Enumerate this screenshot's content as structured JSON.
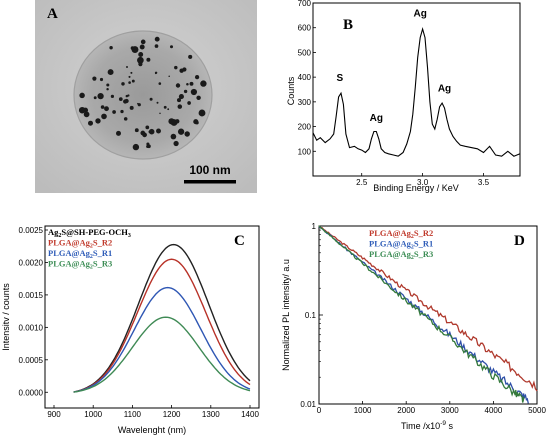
{
  "panelA": {
    "letter": "A",
    "scalebar_label": "100 nm"
  },
  "chart_data": [
    {
      "panel": "B",
      "type": "line",
      "xlabel": "Binding Energy / KeV",
      "ylabel": "Counts",
      "xlim": [
        2.1,
        3.8
      ],
      "ylim": [
        0,
        700
      ],
      "xticks": [
        2.5,
        3.0,
        3.5
      ],
      "yticks": [
        100,
        200,
        300,
        400,
        500,
        600,
        700
      ],
      "peak_labels": [
        {
          "text": "S",
          "x": 2.32,
          "y": 385
        },
        {
          "text": "Ag",
          "x": 2.62,
          "y": 222
        },
        {
          "text": "Ag",
          "x": 2.98,
          "y": 645
        },
        {
          "text": "Ag",
          "x": 3.18,
          "y": 342
        }
      ],
      "series": [
        {
          "x": [
            2.1,
            2.13,
            2.16,
            2.2,
            2.24,
            2.27,
            2.29,
            2.31,
            2.33,
            2.35,
            2.37,
            2.4,
            2.44,
            2.47,
            2.5,
            2.53,
            2.56,
            2.58,
            2.6,
            2.62,
            2.64,
            2.66,
            2.69,
            2.72,
            2.76,
            2.8,
            2.84,
            2.87,
            2.9,
            2.92,
            2.94,
            2.96,
            2.98,
            3.0,
            3.02,
            3.04,
            3.06,
            3.08,
            3.1,
            3.12,
            3.14,
            3.16,
            3.18,
            3.2,
            3.22,
            3.25,
            3.28,
            3.31,
            3.35,
            3.4,
            3.45,
            3.5,
            3.55,
            3.6,
            3.65,
            3.7,
            3.75,
            3.8
          ],
          "y": [
            175,
            145,
            155,
            135,
            150,
            170,
            240,
            320,
            335,
            290,
            170,
            115,
            120,
            110,
            105,
            95,
            110,
            150,
            180,
            180,
            150,
            110,
            95,
            90,
            85,
            80,
            95,
            130,
            180,
            250,
            360,
            480,
            560,
            595,
            560,
            440,
            300,
            210,
            190,
            230,
            280,
            295,
            275,
            230,
            190,
            160,
            140,
            125,
            120,
            115,
            110,
            95,
            120,
            85,
            80,
            100,
            80,
            90
          ]
        }
      ]
    },
    {
      "panel": "C",
      "type": "line",
      "xlabel": "Wavelenght (nm)",
      "ylabel": "Intensitv / counts",
      "xlim": [
        900,
        1400
      ],
      "ylim": [
        -0.00015,
        0.0025
      ],
      "xticks": [
        900,
        1000,
        1100,
        1200,
        1300,
        1400
      ],
      "yticks": [
        0.0,
        0.0005,
        0.001,
        0.0015,
        0.002,
        0.0025
      ],
      "ytick_labels": [
        "0.0000",
        "0.0005",
        "0.0010",
        "0.0015",
        "0.0020",
        "0.0025"
      ],
      "series": [
        {
          "name": "Ag2S@SH-PEG-OCH3",
          "color": "#222222",
          "peak_x": 1205,
          "peak_y": 0.00231,
          "fwhm": 210
        },
        {
          "name": "PLGA@Ag2S_R2",
          "color": "#b83228",
          "peak_x": 1200,
          "peak_y": 0.00208,
          "fwhm": 205
        },
        {
          "name": "PLGA@Ag2S_R1",
          "color": "#2f57b4",
          "peak_x": 1190,
          "peak_y": 0.00164,
          "fwhm": 200
        },
        {
          "name": "PLGA@Ag2S_R3",
          "color": "#3f8a55",
          "peak_x": 1185,
          "peak_y": 0.00118,
          "fwhm": 200
        }
      ],
      "legend": {
        "placement": "top-left",
        "entries": [
          {
            "main": "Ag",
            "sub": "2",
            "rest": "S@SH-PEG-OCH",
            "sub2": "3",
            "color": "#000000"
          },
          {
            "main": "PLGA@Ag",
            "sub": "2",
            "rest": "S_R2",
            "sub2": "",
            "color": "#c0392b"
          },
          {
            "main": "PLGA@Ag",
            "sub": "2",
            "rest": "S_R1",
            "sub2": "",
            "color": "#2e5cb8"
          },
          {
            "main": "PLGA@Ag",
            "sub": "2",
            "rest": "S_R3",
            "sub2": "",
            "color": "#3c8d55"
          }
        ]
      }
    },
    {
      "panel": "D",
      "type": "line",
      "log_y": true,
      "xlabel_main": "Time /x10",
      "xlabel_exp": "-9",
      "xlabel_unit": " s",
      "ylabel": "Normalized PL intensity/ a.u",
      "xlim": [
        0,
        5000
      ],
      "ylim": [
        0.01,
        1
      ],
      "xticks": [
        0,
        1000,
        2000,
        3000,
        4000,
        5000
      ],
      "yticks": [
        0.01,
        0.1,
        1
      ],
      "ytick_labels": [
        "0.01",
        "0.1",
        "1"
      ],
      "series": [
        {
          "name": "PLGA@Ag2S_R2",
          "color": "#b03a2e",
          "x": [
            0,
            500,
            1000,
            1500,
            2000,
            2500,
            3000,
            3500,
            4000,
            4500,
            5000
          ],
          "y": [
            1.0,
            0.66,
            0.44,
            0.29,
            0.19,
            0.125,
            0.083,
            0.055,
            0.036,
            0.024,
            0.016
          ]
        },
        {
          "name": "PLGA@Ag2S_R1",
          "color": "#2e4fa8",
          "x": [
            0,
            500,
            1000,
            1500,
            2000,
            2500,
            3000,
            3500,
            4000,
            4500,
            4800
          ],
          "y": [
            1.0,
            0.62,
            0.39,
            0.245,
            0.153,
            0.096,
            0.06,
            0.037,
            0.023,
            0.0145,
            0.0112
          ]
        },
        {
          "name": "PLGA@Ag2S_R3",
          "color": "#357a3c",
          "x": [
            0,
            500,
            1000,
            1500,
            2000,
            2500,
            3000,
            3500,
            4000,
            4500,
            4700
          ],
          "y": [
            1.0,
            0.615,
            0.38,
            0.235,
            0.145,
            0.09,
            0.056,
            0.034,
            0.021,
            0.0132,
            0.011
          ]
        }
      ],
      "legend": {
        "placement": "top-center",
        "entries": [
          {
            "main": "PLGA@Ag",
            "sub": "2",
            "rest": "S_R2",
            "color": "#c0392b"
          },
          {
            "main": "PLGA@Ag",
            "sub": "2",
            "rest": "S_R1",
            "color": "#2e5cb8"
          },
          {
            "main": "PLGA@Ag",
            "sub": "2",
            "rest": "S_R3",
            "color": "#3c8d55"
          }
        ]
      }
    }
  ]
}
